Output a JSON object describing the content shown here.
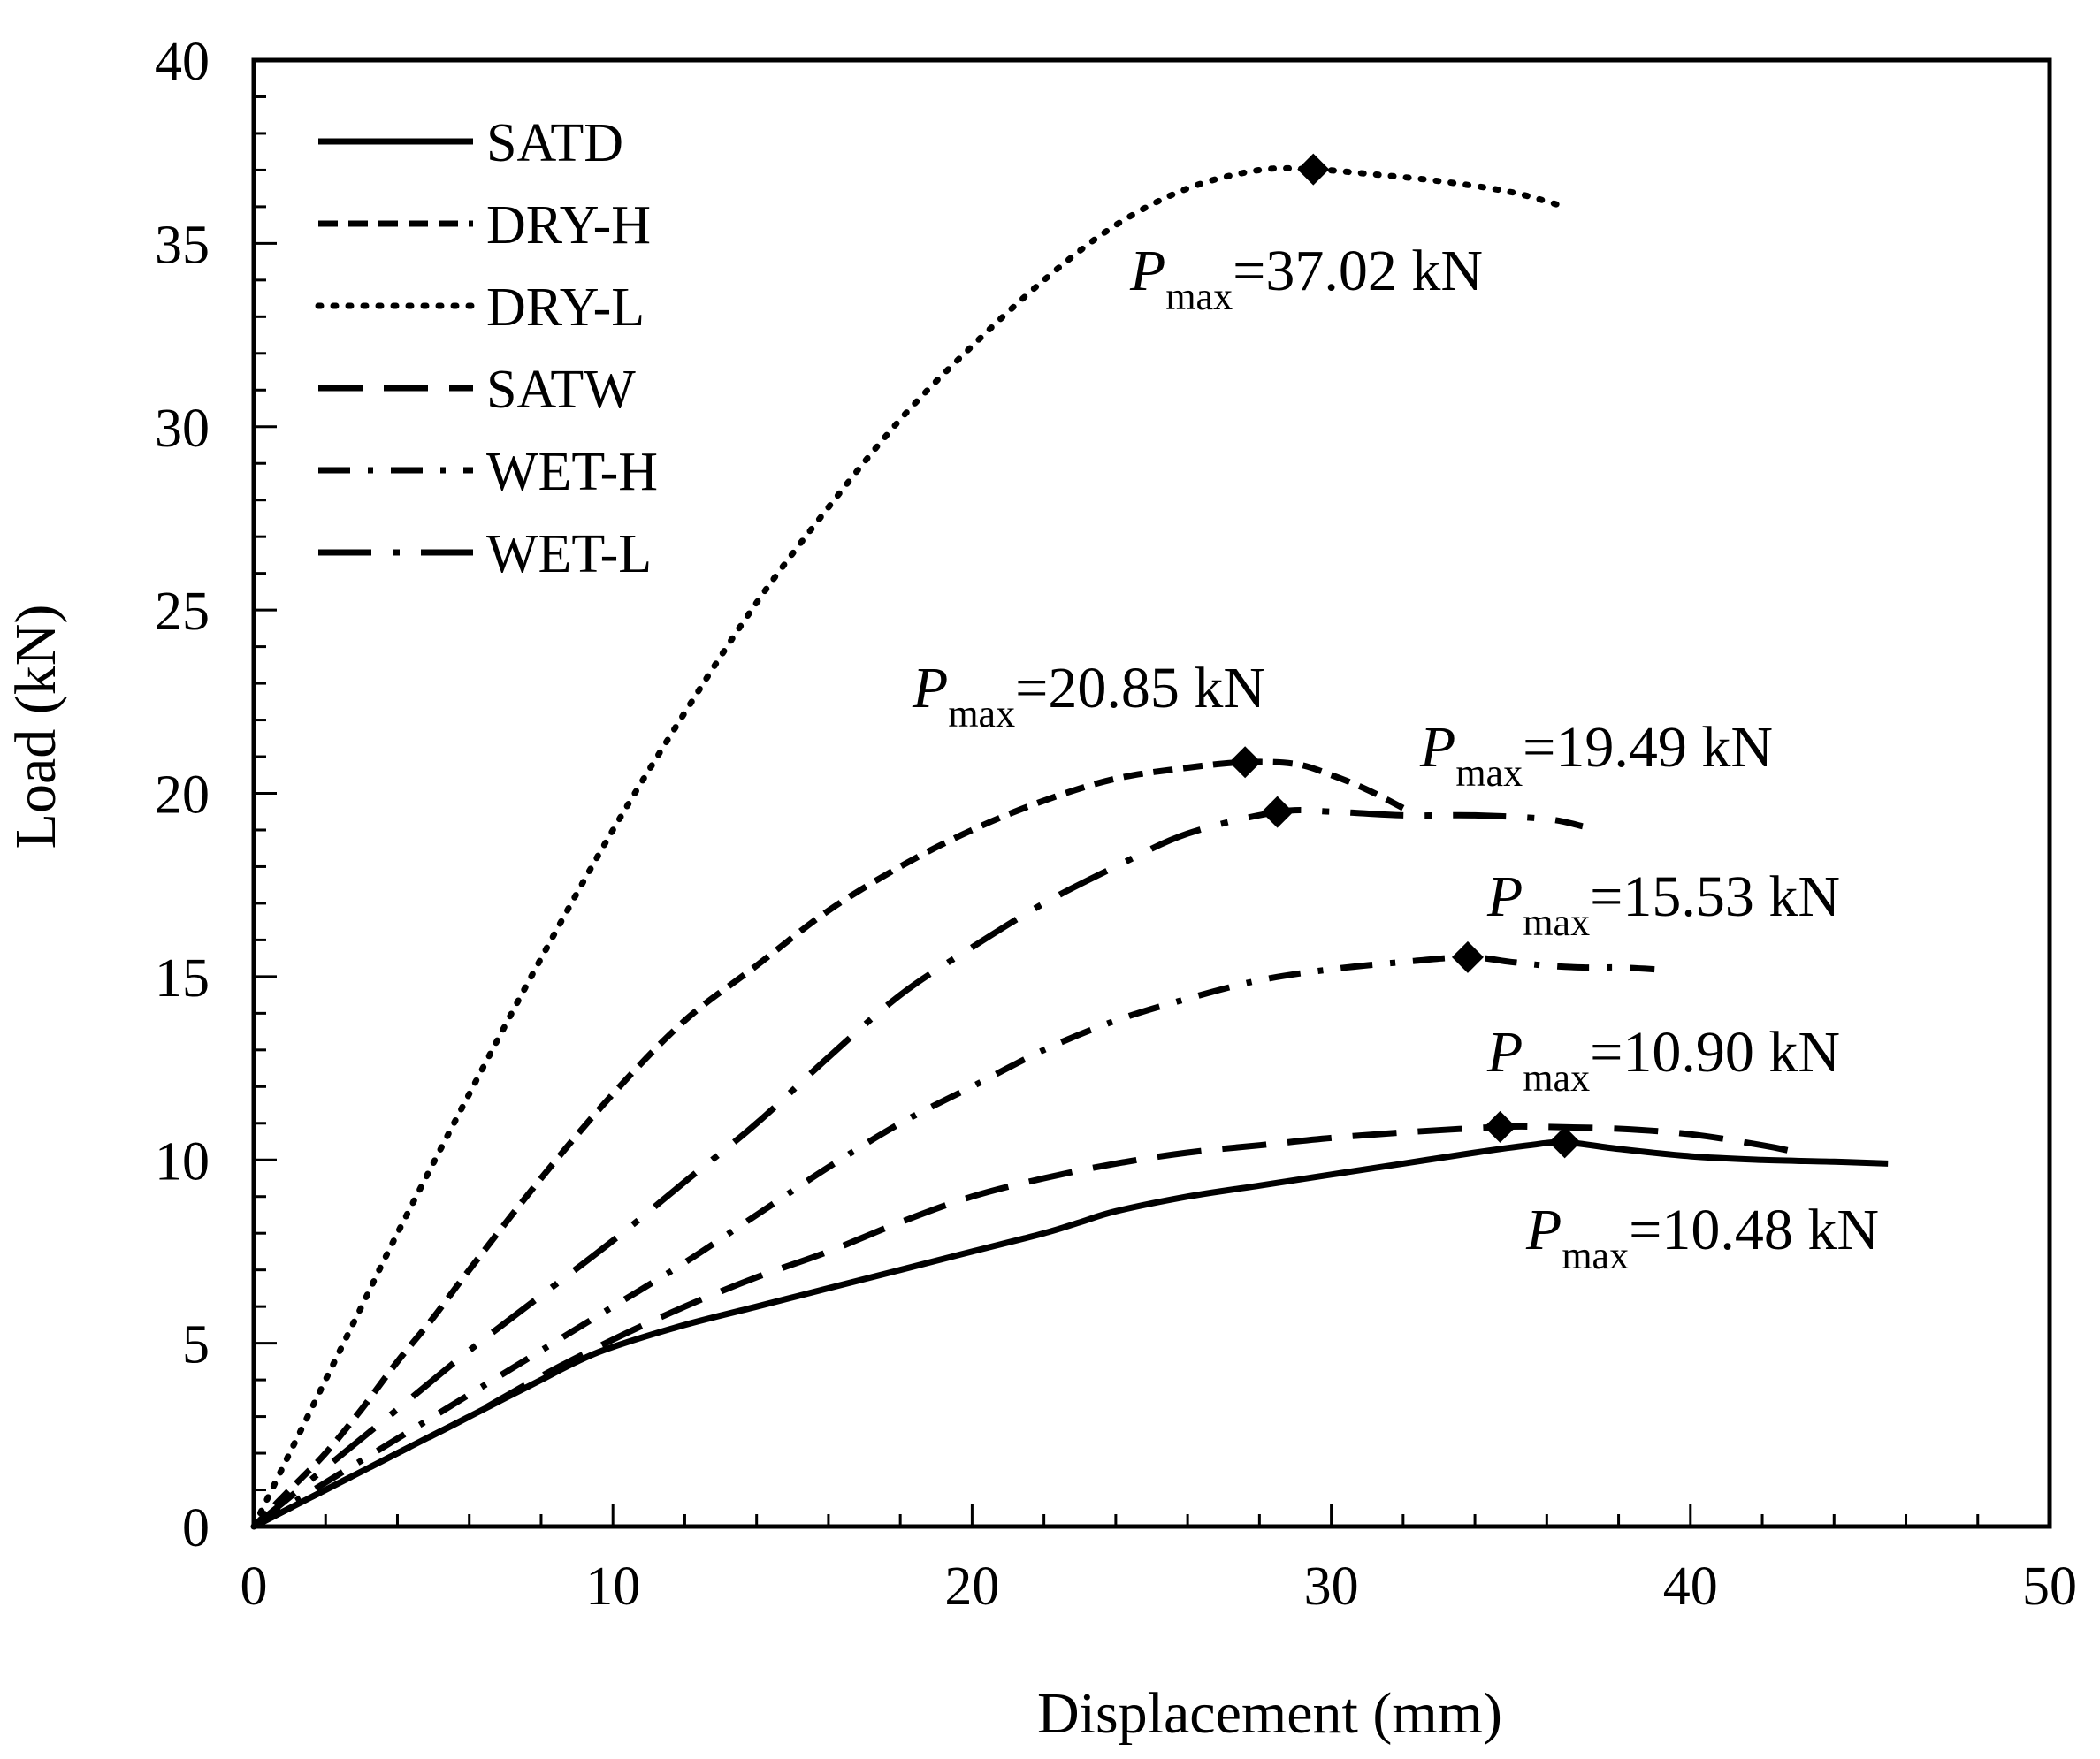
{
  "chart_data": {
    "type": "line",
    "title": "",
    "xlabel": "Displacement (mm)",
    "ylabel": "Load (kN)",
    "xlim": [
      0,
      50
    ],
    "ylim": [
      0,
      40
    ],
    "xticks": [
      0,
      10,
      20,
      30,
      40,
      50
    ],
    "yticks": [
      0,
      5,
      10,
      15,
      20,
      25,
      30,
      35,
      40
    ],
    "xtick_labels": [
      "0",
      "10",
      "20",
      "30",
      "40",
      "50"
    ],
    "ytick_labels": [
      "0",
      "5",
      "10",
      "15",
      "20",
      "25",
      "30",
      "35",
      "40"
    ],
    "grid": false,
    "legend_position": "top-left",
    "series": [
      {
        "name": "SATD",
        "style": "solid",
        "x": [
          0,
          1,
          2,
          3,
          4,
          5,
          6,
          7,
          8,
          9,
          10,
          12,
          14,
          16,
          18,
          20,
          22,
          23,
          24,
          26,
          28,
          30,
          32,
          34,
          35.5,
          36.5,
          38,
          40,
          42,
          44,
          45.5
        ],
        "y": [
          0,
          0.5,
          1.0,
          1.5,
          2.0,
          2.5,
          3.0,
          3.5,
          4.0,
          4.5,
          4.9,
          5.5,
          6.0,
          6.5,
          7.0,
          7.5,
          8.0,
          8.3,
          8.6,
          9.0,
          9.3,
          9.6,
          9.9,
          10.2,
          10.4,
          10.48,
          10.3,
          10.1,
          10.0,
          9.95,
          9.9
        ],
        "peak": {
          "x": 36.5,
          "y": 10.48,
          "label": "=10.48 kN"
        }
      },
      {
        "name": "DRY-H",
        "style": "short-dash",
        "x": [
          0,
          1,
          2,
          3,
          4,
          5,
          6,
          8,
          10,
          12,
          14,
          16,
          18,
          20,
          22,
          24,
          26,
          27.6,
          29,
          30,
          31,
          32
        ],
        "y": [
          0,
          1.0,
          2.0,
          3.2,
          4.5,
          5.7,
          7.0,
          9.5,
          11.8,
          13.8,
          15.3,
          16.8,
          18.0,
          19.0,
          19.8,
          20.4,
          20.7,
          20.85,
          20.8,
          20.5,
          20.1,
          19.6
        ],
        "peak": {
          "x": 27.6,
          "y": 20.85,
          "label": "=20.85 kN"
        }
      },
      {
        "name": "DRY-L",
        "style": "dotted",
        "x": [
          0,
          1,
          2,
          3,
          4,
          6,
          8,
          10,
          12,
          14,
          16,
          18,
          20,
          22,
          24,
          26,
          28,
          29.5,
          31,
          33,
          35,
          36.5
        ],
        "y": [
          0,
          2.0,
          4.0,
          6.0,
          8.0,
          11.8,
          15.5,
          19.0,
          22.2,
          25.2,
          27.8,
          30.2,
          32.2,
          34.0,
          35.5,
          36.5,
          37.0,
          37.02,
          36.9,
          36.7,
          36.4,
          36.0
        ],
        "peak": {
          "x": 29.5,
          "y": 37.02,
          "label": "=37.02 kN"
        }
      },
      {
        "name": "SATW",
        "style": "long-dash",
        "x": [
          0,
          2,
          4,
          6,
          8,
          10,
          12,
          14,
          16,
          18,
          20,
          22,
          24,
          26,
          28,
          30,
          32,
          34.7,
          36,
          38,
          40,
          42,
          43
        ],
        "y": [
          0,
          1.0,
          2.0,
          3.0,
          4.1,
          5.1,
          6.0,
          6.8,
          7.5,
          8.3,
          9.0,
          9.5,
          9.9,
          10.2,
          10.4,
          10.6,
          10.75,
          10.9,
          10.9,
          10.85,
          10.7,
          10.4,
          10.2
        ],
        "peak": {
          "x": 34.7,
          "y": 10.9,
          "label": "=10.90 kN"
        }
      },
      {
        "name": "WET-H",
        "style": "dash-dot",
        "x": [
          0,
          2,
          4,
          6,
          8,
          10,
          12,
          14,
          16,
          18,
          20,
          22,
          24,
          26,
          28,
          30,
          32,
          33.8,
          35,
          36,
          37,
          38,
          39
        ],
        "y": [
          0,
          1.2,
          2.4,
          3.6,
          4.8,
          6.0,
          7.2,
          8.5,
          9.8,
          11.0,
          12.0,
          13.0,
          13.8,
          14.4,
          14.9,
          15.2,
          15.4,
          15.53,
          15.4,
          15.3,
          15.25,
          15.25,
          15.2
        ],
        "peak": {
          "x": 33.8,
          "y": 15.53,
          "label": "=15.53 kN"
        }
      },
      {
        "name": "WET-L",
        "style": "long-dash-dot",
        "x": [
          0,
          2,
          4,
          6,
          8,
          10,
          12,
          14,
          16,
          18,
          20,
          22,
          24,
          26,
          28.5,
          30,
          32,
          34,
          36,
          37
        ],
        "y": [
          0,
          1.6,
          3.2,
          4.8,
          6.3,
          7.8,
          9.4,
          11.0,
          12.8,
          14.5,
          15.8,
          17.0,
          18.0,
          18.9,
          19.49,
          19.5,
          19.4,
          19.4,
          19.3,
          19.1
        ],
        "peak": {
          "x": 28.5,
          "y": 19.49,
          "label": "=19.49 kN"
        }
      }
    ],
    "annotations": [
      {
        "series": "DRY-L",
        "text_main": "P",
        "text_sub": "max",
        "text_value": "=37.02 kN"
      },
      {
        "series": "DRY-H",
        "text_main": "P",
        "text_sub": "max",
        "text_value": "=20.85 kN"
      },
      {
        "series": "WET-L",
        "text_main": "P",
        "text_sub": "max",
        "text_value": "=19.49 kN"
      },
      {
        "series": "WET-H",
        "text_main": "P",
        "text_sub": "max",
        "text_value": "=15.53 kN"
      },
      {
        "series": "SATW",
        "text_main": "P",
        "text_sub": "max",
        "text_value": "=10.90 kN"
      },
      {
        "series": "SATD",
        "text_main": "P",
        "text_sub": "max",
        "text_value": "=10.48 kN"
      }
    ]
  }
}
